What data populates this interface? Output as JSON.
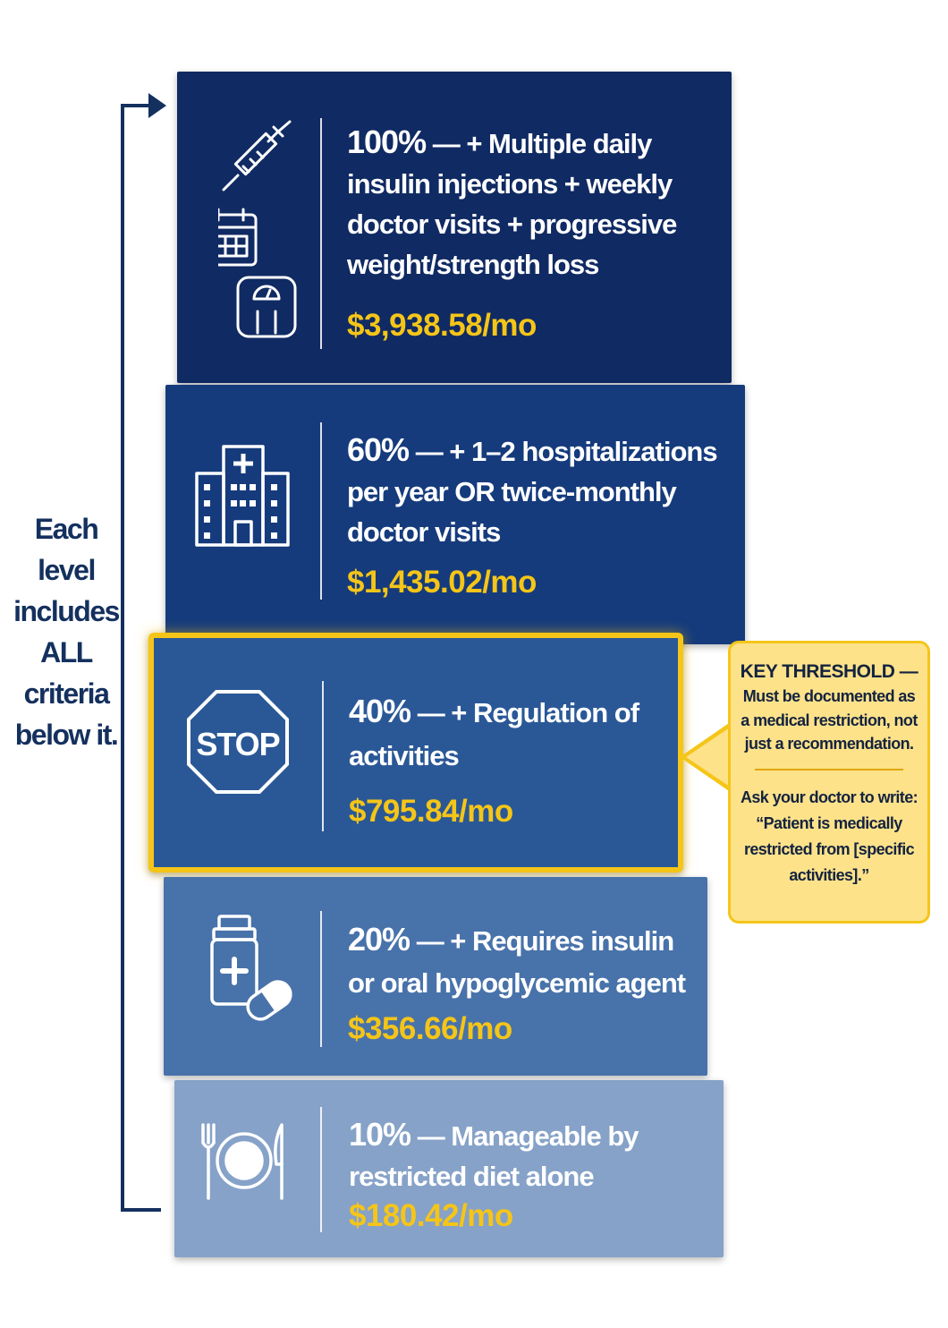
{
  "side_note": {
    "lines": [
      "Each",
      "level",
      "includes",
      "ALL",
      "criteria",
      "below it."
    ]
  },
  "tiers": [
    {
      "percent": "100%",
      "description": "— + Multiple daily insulin injections + weekly doctor visits + progressive weight/strength loss",
      "price": "$3,938.58/mo",
      "icons": [
        "syringe-icon",
        "calendar-icon",
        "scale-icon"
      ]
    },
    {
      "percent": "60%",
      "description": "— + 1–2 hospitalizations per year OR twice-monthly doctor visits",
      "price": "$1,435.02/mo",
      "icons": [
        "hospital-icon"
      ]
    },
    {
      "percent": "40%",
      "description": "— + Regulation of activities",
      "price": "$795.84/mo",
      "icons": [
        "stop-sign-icon"
      ],
      "stop_label": "STOP",
      "highlight_color": "#f5c518"
    },
    {
      "percent": "20%",
      "description": "— + Requires insulin or oral hypoglycemic agent",
      "price": "$356.66/mo",
      "icons": [
        "medicine-bottle-icon",
        "pill-icon"
      ]
    },
    {
      "percent": "10%",
      "description": "— Manageable by restricted diet alone",
      "price": "$180.42/mo",
      "icons": [
        "fork-icon",
        "plate-icon",
        "knife-icon"
      ]
    }
  ],
  "callout": {
    "title": "KEY THRESHOLD —",
    "body": "Must be documented as a medical restriction, not just a recommendation.",
    "ask": "Ask your doctor to write: “Patient is medically restricted from [specific activities].”"
  },
  "colors": {
    "tier_100": "#102a63",
    "tier_60": "#153b7c",
    "tier_40": "#2a5897",
    "tier_20": "#4872aa",
    "tier_10": "#86a2c8",
    "price": "#f5c518",
    "callout_bg": "#fde28a",
    "navy_text": "#14305e"
  }
}
